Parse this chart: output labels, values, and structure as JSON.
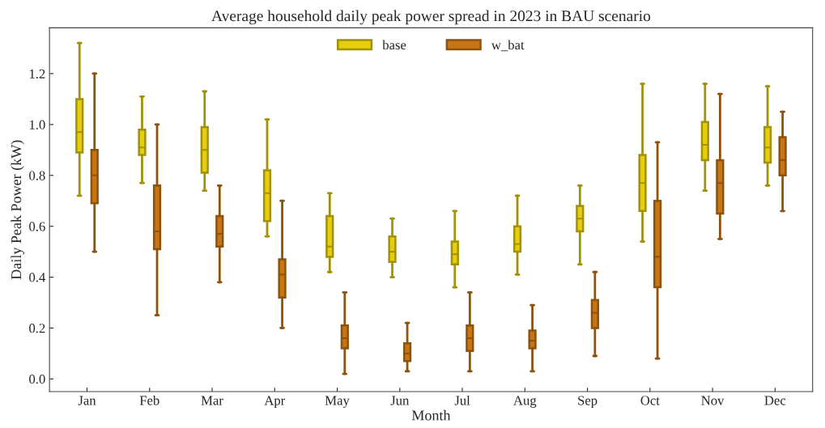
{
  "chart_data": {
    "type": "box",
    "title": "Average household daily peak power spread in 2023 in BAU scenario",
    "xlabel": "Month",
    "ylabel": "Daily Peak Power (kW)",
    "categories": [
      "Jan",
      "Feb",
      "Mar",
      "Apr",
      "May",
      "Jun",
      "Jul",
      "Aug",
      "Sep",
      "Oct",
      "Nov",
      "Dec"
    ],
    "ylim": [
      -0.05,
      1.38
    ],
    "yticks": [
      {
        "value": 0,
        "label": "0.0"
      },
      0.2,
      0.4,
      0.6,
      0.8,
      {
        "value": 1,
        "label": "1.0"
      },
      1.2
    ],
    "legend": "top",
    "grid": false,
    "series": [
      {
        "name": "base",
        "color": "#e6cf0a",
        "boxes": [
          {
            "low": 0.72,
            "q1": 0.89,
            "median": 0.97,
            "q3": 1.1,
            "high": 1.32
          },
          {
            "low": 0.77,
            "q1": 0.88,
            "median": 0.91,
            "q3": 0.98,
            "high": 1.11
          },
          {
            "low": 0.74,
            "q1": 0.81,
            "median": 0.9,
            "q3": 0.99,
            "high": 1.13
          },
          {
            "low": 0.56,
            "q1": 0.62,
            "median": 0.73,
            "q3": 0.82,
            "high": 1.02
          },
          {
            "low": 0.42,
            "q1": 0.48,
            "median": 0.52,
            "q3": 0.64,
            "high": 0.73
          },
          {
            "low": 0.4,
            "q1": 0.46,
            "median": 0.5,
            "q3": 0.56,
            "high": 0.63
          },
          {
            "low": 0.36,
            "q1": 0.45,
            "median": 0.49,
            "q3": 0.54,
            "high": 0.66
          },
          {
            "low": 0.41,
            "q1": 0.5,
            "median": 0.53,
            "q3": 0.6,
            "high": 0.72
          },
          {
            "low": 0.45,
            "q1": 0.58,
            "median": 0.63,
            "q3": 0.68,
            "high": 0.76
          },
          {
            "low": 0.54,
            "q1": 0.66,
            "median": 0.77,
            "q3": 0.88,
            "high": 1.16
          },
          {
            "low": 0.74,
            "q1": 0.86,
            "median": 0.92,
            "q3": 1.01,
            "high": 1.16
          },
          {
            "low": 0.76,
            "q1": 0.85,
            "median": 0.91,
            "q3": 0.99,
            "high": 1.15
          }
        ]
      },
      {
        "name": "w_bat",
        "color": "#c87514",
        "boxes": [
          {
            "low": 0.5,
            "q1": 0.69,
            "median": 0.8,
            "q3": 0.9,
            "high": 1.2
          },
          {
            "low": 0.25,
            "q1": 0.51,
            "median": 0.58,
            "q3": 0.76,
            "high": 1.0
          },
          {
            "low": 0.38,
            "q1": 0.52,
            "median": 0.57,
            "q3": 0.64,
            "high": 0.76
          },
          {
            "low": 0.2,
            "q1": 0.32,
            "median": 0.41,
            "q3": 0.47,
            "high": 0.7
          },
          {
            "low": 0.02,
            "q1": 0.12,
            "median": 0.16,
            "q3": 0.21,
            "high": 0.34
          },
          {
            "low": 0.03,
            "q1": 0.07,
            "median": 0.1,
            "q3": 0.14,
            "high": 0.22
          },
          {
            "low": 0.03,
            "q1": 0.11,
            "median": 0.16,
            "q3": 0.21,
            "high": 0.34
          },
          {
            "low": 0.03,
            "q1": 0.12,
            "median": 0.15,
            "q3": 0.19,
            "high": 0.29
          },
          {
            "low": 0.09,
            "q1": 0.2,
            "median": 0.26,
            "q3": 0.31,
            "high": 0.42
          },
          {
            "low": 0.08,
            "q1": 0.36,
            "median": 0.48,
            "q3": 0.7,
            "high": 0.93
          },
          {
            "low": 0.55,
            "q1": 0.65,
            "median": 0.77,
            "q3": 0.86,
            "high": 1.12
          },
          {
            "low": 0.66,
            "q1": 0.8,
            "median": 0.86,
            "q3": 0.95,
            "high": 1.05
          }
        ]
      }
    ]
  }
}
